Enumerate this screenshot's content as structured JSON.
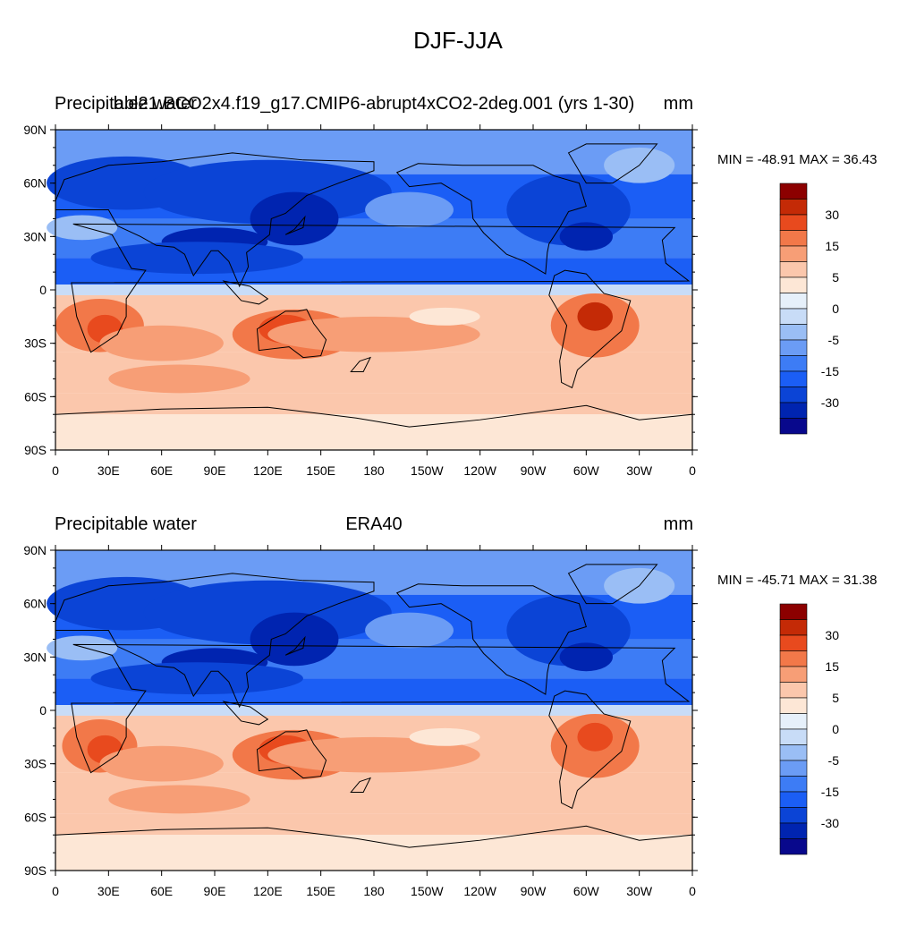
{
  "title": "DJF-JJA",
  "colors": {
    "ocean_neg": "#4a7cf0",
    "land_line": "#000000"
  },
  "palette": [
    "#08088c",
    "#0024b0",
    "#0b44d6",
    "#1b5ef5",
    "#3d7cf5",
    "#6b9cf5",
    "#9abef5",
    "#c8dcf7",
    "#e6f0fa",
    "#fde7d6",
    "#fbc7ac",
    "#f79e76",
    "#f27849",
    "#e84a1e",
    "#c42a06",
    "#8c0000"
  ],
  "panels": [
    {
      "left_title": "Precipitable water",
      "center_title": "b.e21.BCO2x4.f19_g17.CMIP6-abrupt4xCO2-2deg.001 (yrs 1-30)",
      "units": "mm",
      "min_max": "MIN = -48.91 MAX =  36.43"
    },
    {
      "left_title": "Precipitable water",
      "center_title": "ERA40",
      "units": "mm",
      "min_max": "MIN = -45.71 MAX =  31.38"
    }
  ],
  "axes": {
    "lat_ticks": [
      "90N",
      "60N",
      "30N",
      "0",
      "30S",
      "60S",
      "90S"
    ],
    "lon_ticks": [
      "0",
      "30E",
      "60E",
      "90E",
      "120E",
      "150E",
      "180",
      "150W",
      "120W",
      "90W",
      "60W",
      "30W",
      "0"
    ]
  },
  "colorbar": {
    "labels": [
      "30",
      "15",
      "5",
      "0",
      "-5",
      "-15",
      "-30"
    ]
  }
}
